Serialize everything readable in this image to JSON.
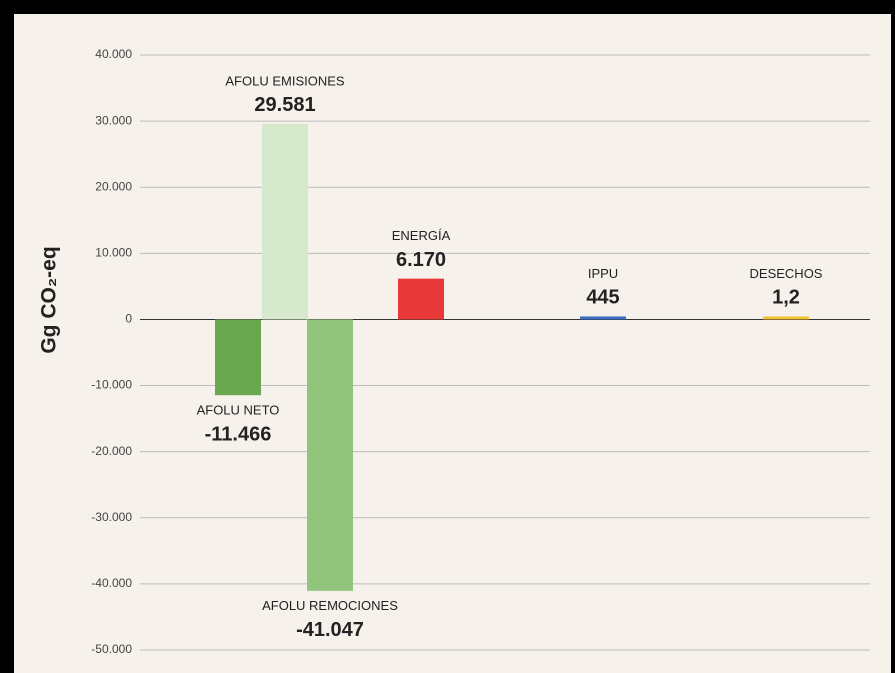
{
  "chart_data": {
    "type": "bar",
    "y_label": "Gg CO₂-eq",
    "categories": [
      "AFOLU NETO",
      "AFOLU EMISIONES",
      "AFOLU REMOCIONES",
      "ENERGÍA",
      "IPPU",
      "DESECHOS"
    ],
    "values": [
      -11466,
      29581,
      -41047,
      6170,
      445,
      1.2
    ],
    "value_labels": [
      "-11.466",
      "29.581",
      "-41.047",
      "6.170",
      "445",
      "1,2"
    ],
    "colors": [
      "#6aa84f",
      "#d6e9cd",
      "#93c47d",
      "#e8383a",
      "#3c6ec4",
      "#f2c232"
    ],
    "ylim": [
      -50000,
      40000
    ],
    "yticks": [
      {
        "value": 40000,
        "label": "40.000"
      },
      {
        "value": 30000,
        "label": "30.000"
      },
      {
        "value": 20000,
        "label": "20.000"
      },
      {
        "value": 10000,
        "label": "10.000"
      },
      0,
      {
        "value": -10000,
        "label": "-10.000"
      },
      {
        "value": -20000,
        "label": "-20.000"
      },
      {
        "value": -30000,
        "label": "-30.000"
      },
      {
        "value": -40000,
        "label": "-40.000"
      },
      {
        "value": -50000,
        "label": "-50.000"
      }
    ],
    "grid": true
  }
}
